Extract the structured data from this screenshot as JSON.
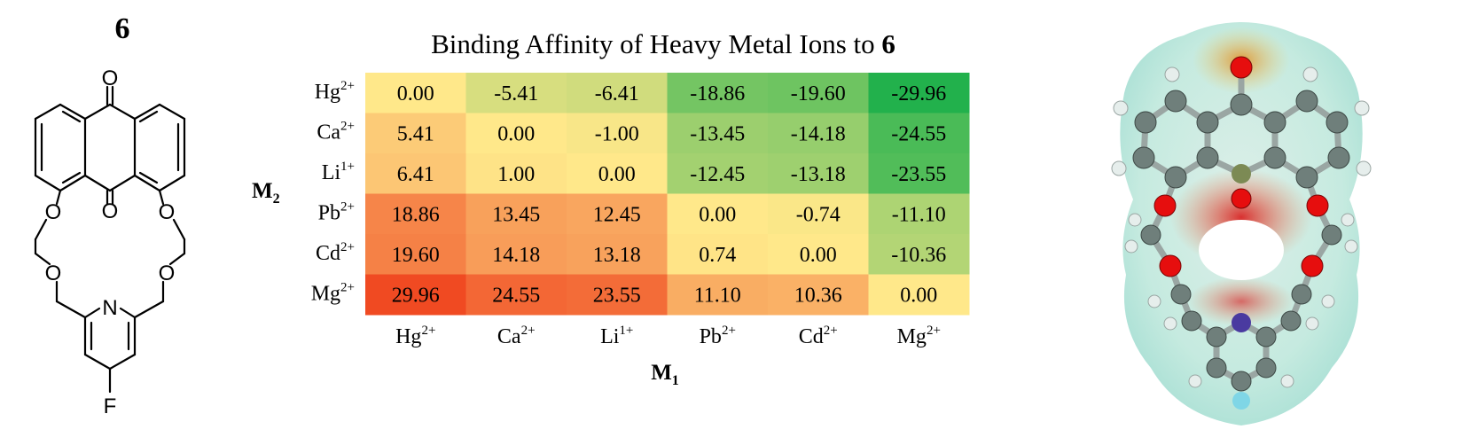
{
  "compound": {
    "label": "6"
  },
  "structure": {
    "atoms": {
      "oxygen": "O",
      "nitrogen": "N",
      "fluorine": "F"
    }
  },
  "chart_data": {
    "type": "heatmap",
    "title": "Binding Affinity of Heavy Metal Ions to",
    "title_bold_suffix": "6",
    "xlabel": "M",
    "xlabel_subscript": "1",
    "ylabel": "M",
    "ylabel_subscript": "2",
    "x_categories": [
      {
        "base": "Hg",
        "charge": "2+"
      },
      {
        "base": "Ca",
        "charge": "2+"
      },
      {
        "base": "Li",
        "charge": "1+"
      },
      {
        "base": "Pb",
        "charge": "2+"
      },
      {
        "base": "Cd",
        "charge": "2+"
      },
      {
        "base": "Mg",
        "charge": "2+"
      }
    ],
    "y_categories": [
      {
        "base": "Hg",
        "charge": "2+"
      },
      {
        "base": "Ca",
        "charge": "2+"
      },
      {
        "base": "Li",
        "charge": "1+"
      },
      {
        "base": "Pb",
        "charge": "2+"
      },
      {
        "base": "Cd",
        "charge": "2+"
      },
      {
        "base": "Mg",
        "charge": "2+"
      }
    ],
    "values": [
      [
        0.0,
        -5.41,
        -6.41,
        -18.86,
        -19.6,
        -29.96
      ],
      [
        5.41,
        0.0,
        -1.0,
        -13.45,
        -14.18,
        -24.55
      ],
      [
        6.41,
        1.0,
        0.0,
        -12.45,
        -13.18,
        -23.55
      ],
      [
        18.86,
        13.45,
        12.45,
        0.0,
        -0.74,
        -11.1
      ],
      [
        19.6,
        14.18,
        13.18,
        0.74,
        0.0,
        -10.36
      ],
      [
        29.96,
        24.55,
        23.55,
        11.1,
        10.36,
        0.0
      ]
    ],
    "value_range": [
      -29.96,
      29.96
    ],
    "colormap": {
      "negative": "#22b14c",
      "zero": "#ffe88a",
      "positive": "#f04a22"
    },
    "grid": false,
    "legend": "none"
  },
  "model": {
    "colors": {
      "surface": "#bfe8dc",
      "carbon": "#6f7f7b",
      "hydrogen": "#e6eeec",
      "oxygen": "#e01010",
      "nitrogen": "#4a3aa0",
      "fluorine": "#7fd6e6"
    }
  }
}
